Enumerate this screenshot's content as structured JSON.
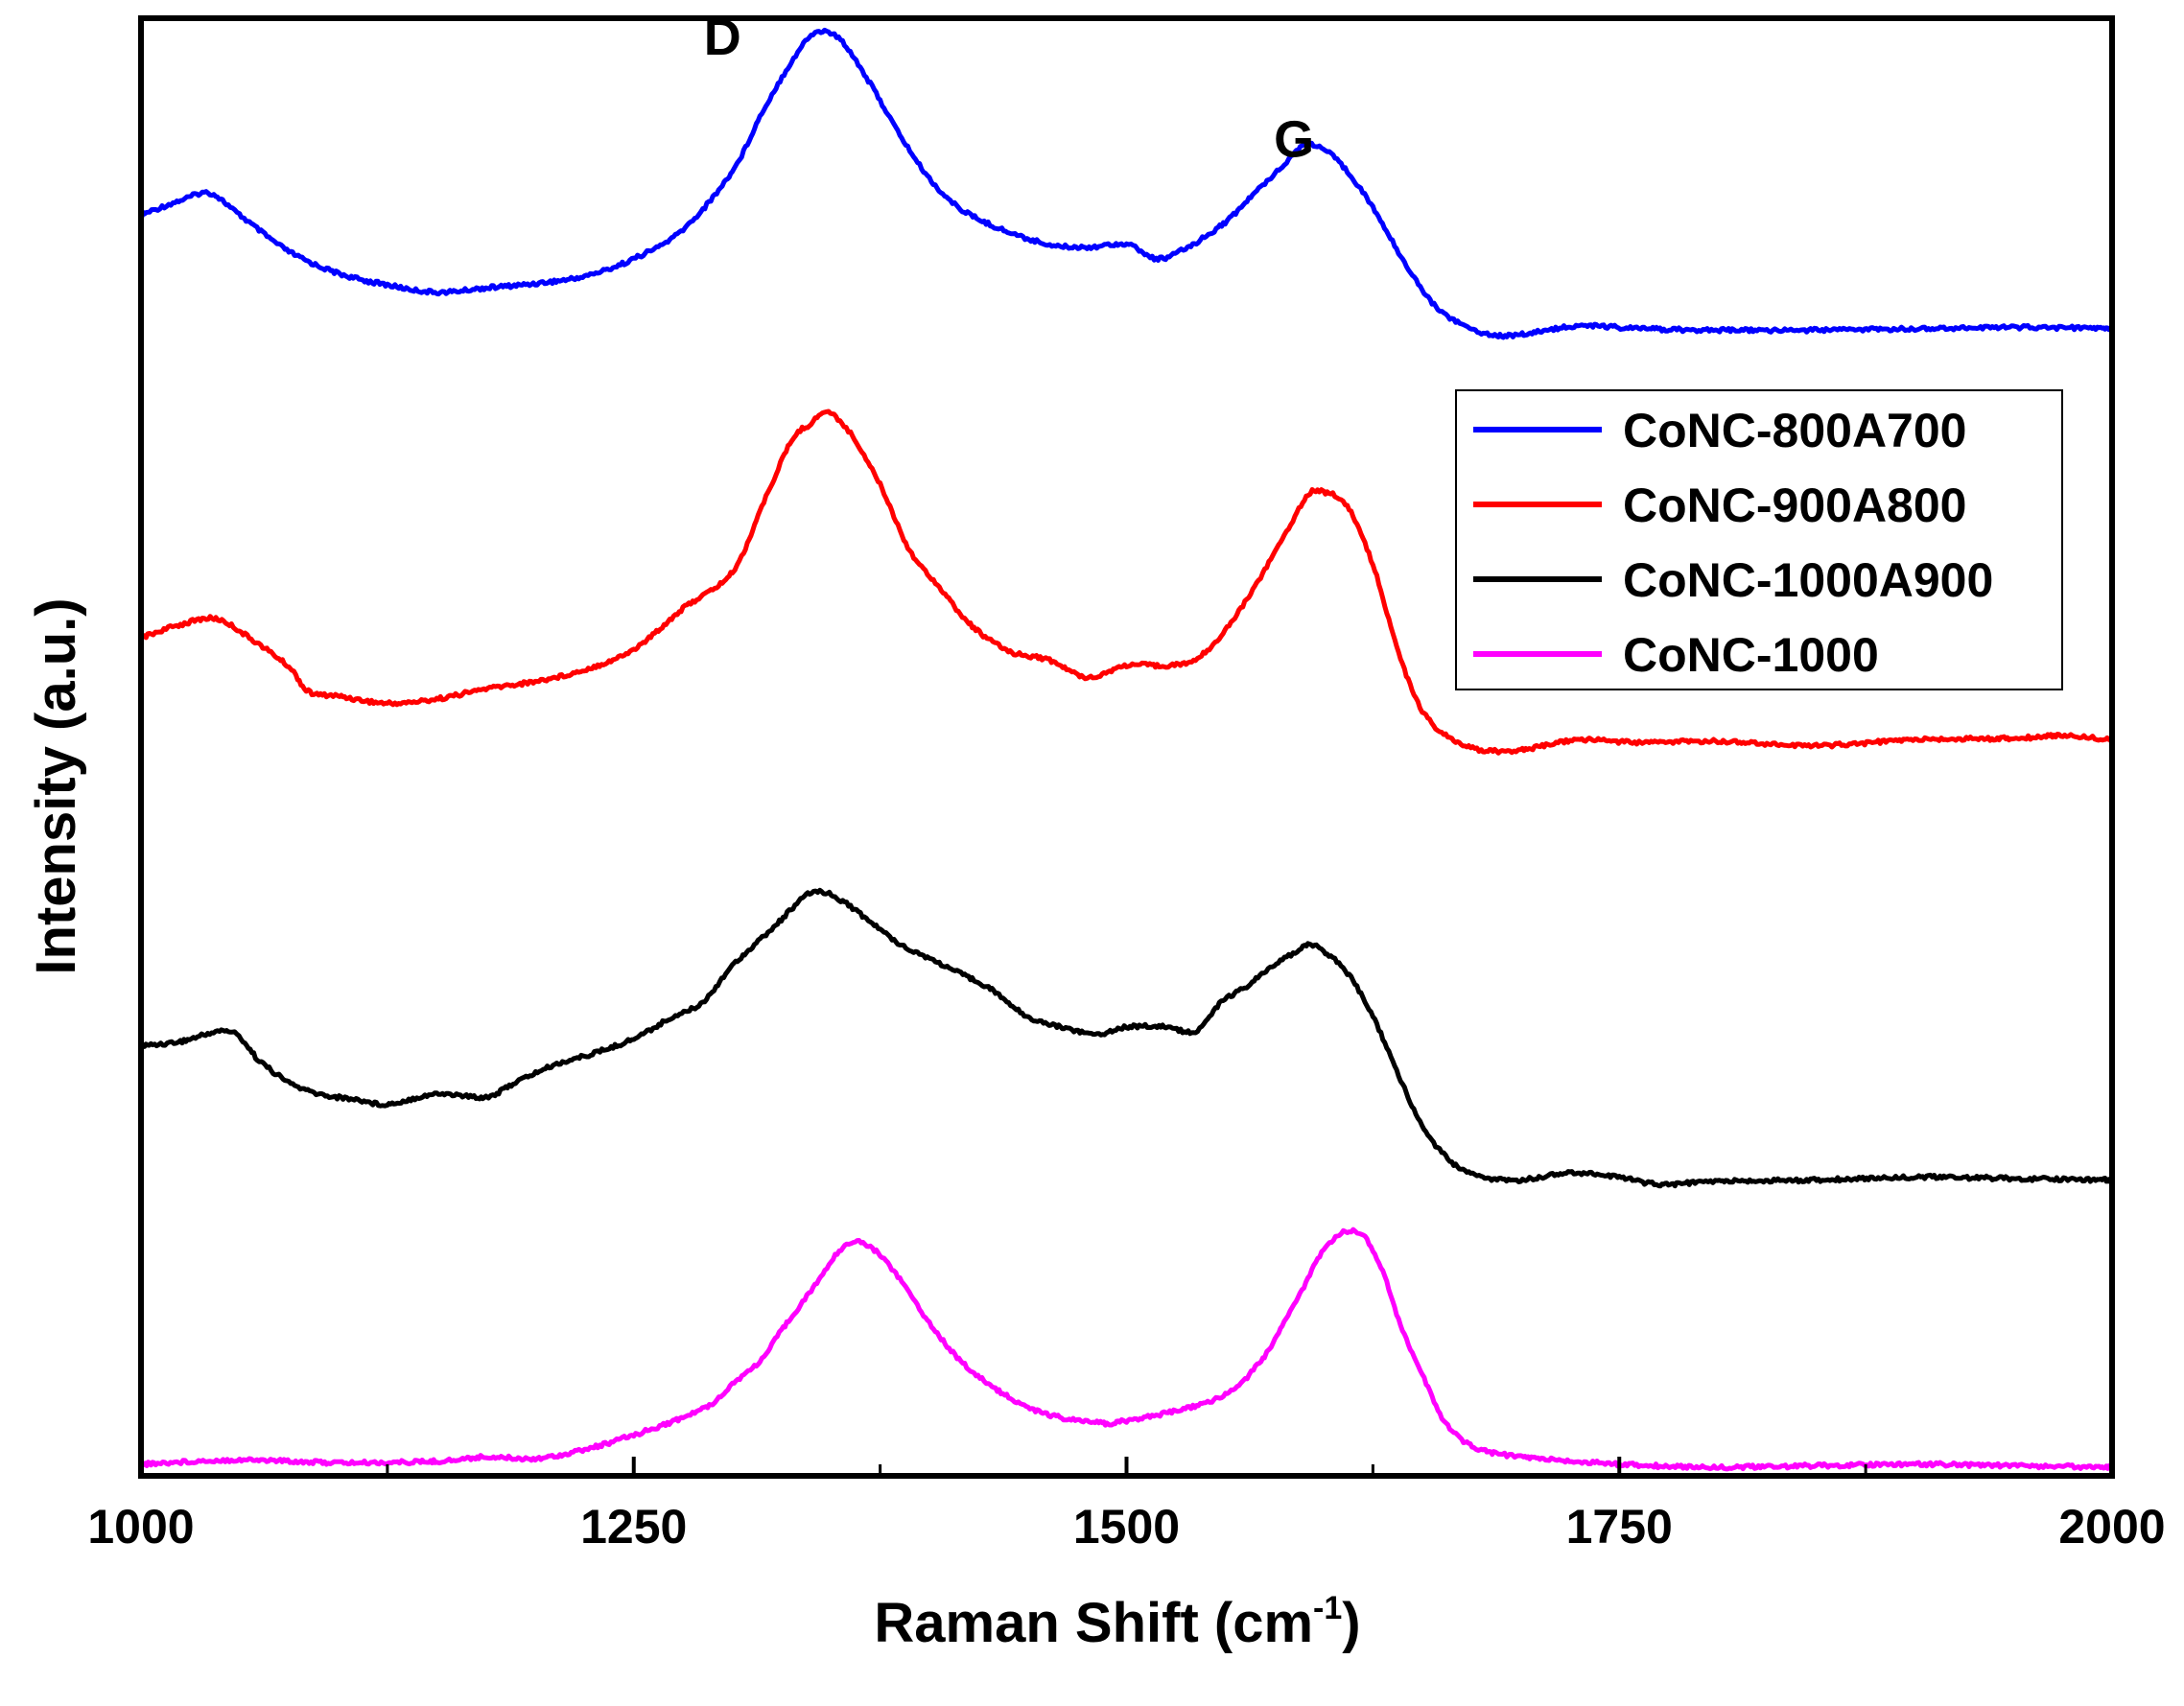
{
  "chart_data": {
    "type": "line",
    "title": "",
    "xlabel": "Raman Shift (cm",
    "xlabel_sup": "-1",
    "xlabel_close": ")",
    "ylabel": "Intensity (a.u.)",
    "xlim": [
      1000,
      2000
    ],
    "ylim": [
      0,
      100
    ],
    "xticks": [
      1000,
      1250,
      1500,
      1750,
      2000
    ],
    "x_tick_labels": [
      "1000",
      "1250",
      "1500",
      "1750",
      "2000"
    ],
    "grid": false,
    "legend_position": "right",
    "annotations": [
      {
        "text": "D",
        "x": 1295,
        "y": 97.5
      },
      {
        "text": "G",
        "x": 1585,
        "y": 90.5
      }
    ],
    "series": [
      {
        "name": "CoNC-800A700",
        "color": "#0000ff",
        "points": [
          [
            1000,
            86.5
          ],
          [
            1020,
            87.5
          ],
          [
            1035,
            88.0
          ],
          [
            1050,
            86.5
          ],
          [
            1075,
            84.0
          ],
          [
            1100,
            82.5
          ],
          [
            1125,
            81.7
          ],
          [
            1150,
            81.2
          ],
          [
            1175,
            81.5
          ],
          [
            1200,
            81.8
          ],
          [
            1225,
            82.3
          ],
          [
            1250,
            83.5
          ],
          [
            1275,
            85.5
          ],
          [
            1300,
            89.5
          ],
          [
            1315,
            93.5
          ],
          [
            1330,
            97.0
          ],
          [
            1342,
            99.0
          ],
          [
            1355,
            98.5
          ],
          [
            1370,
            95.5
          ],
          [
            1385,
            92.0
          ],
          [
            1400,
            89.0
          ],
          [
            1415,
            87.0
          ],
          [
            1435,
            85.6
          ],
          [
            1460,
            84.5
          ],
          [
            1480,
            84.3
          ],
          [
            1500,
            84.5
          ],
          [
            1515,
            83.5
          ],
          [
            1530,
            84.2
          ],
          [
            1550,
            86.0
          ],
          [
            1565,
            88.0
          ],
          [
            1580,
            90.0
          ],
          [
            1590,
            91.3
          ],
          [
            1600,
            91.0
          ],
          [
            1612,
            89.5
          ],
          [
            1625,
            87.0
          ],
          [
            1640,
            83.5
          ],
          [
            1655,
            80.5
          ],
          [
            1670,
            79.0
          ],
          [
            1685,
            78.3
          ],
          [
            1700,
            78.3
          ],
          [
            1730,
            78.9
          ],
          [
            1760,
            78.7
          ],
          [
            1800,
            78.6
          ],
          [
            1850,
            78.6
          ],
          [
            1900,
            78.7
          ],
          [
            1950,
            78.8
          ],
          [
            2000,
            78.7
          ]
        ]
      },
      {
        "name": "CoNC-900A800",
        "color": "#ff0000",
        "points": [
          [
            1000,
            57.5
          ],
          [
            1020,
            58.4
          ],
          [
            1038,
            58.8
          ],
          [
            1055,
            57.5
          ],
          [
            1075,
            55.5
          ],
          [
            1085,
            53.8
          ],
          [
            1100,
            53.5
          ],
          [
            1125,
            53.0
          ],
          [
            1150,
            53.3
          ],
          [
            1175,
            54.0
          ],
          [
            1200,
            54.5
          ],
          [
            1225,
            55.3
          ],
          [
            1250,
            56.7
          ],
          [
            1275,
            59.5
          ],
          [
            1300,
            62.0
          ],
          [
            1315,
            66.5
          ],
          [
            1330,
            71.0
          ],
          [
            1340,
            72.2
          ],
          [
            1348,
            73.0
          ],
          [
            1360,
            71.5
          ],
          [
            1375,
            68.0
          ],
          [
            1390,
            63.5
          ],
          [
            1405,
            61.0
          ],
          [
            1420,
            58.5
          ],
          [
            1440,
            56.6
          ],
          [
            1460,
            56.0
          ],
          [
            1480,
            54.8
          ],
          [
            1500,
            55.6
          ],
          [
            1520,
            55.6
          ],
          [
            1535,
            56.0
          ],
          [
            1550,
            58.0
          ],
          [
            1565,
            61.0
          ],
          [
            1580,
            64.5
          ],
          [
            1592,
            67.3
          ],
          [
            1600,
            67.5
          ],
          [
            1612,
            66.5
          ],
          [
            1625,
            62.5
          ],
          [
            1638,
            56.5
          ],
          [
            1650,
            52.5
          ],
          [
            1665,
            50.5
          ],
          [
            1680,
            49.8
          ],
          [
            1700,
            49.8
          ],
          [
            1730,
            50.5
          ],
          [
            1760,
            50.3
          ],
          [
            1800,
            50.4
          ],
          [
            1850,
            50.1
          ],
          [
            1900,
            50.5
          ],
          [
            1950,
            50.6
          ],
          [
            1975,
            50.8
          ],
          [
            2000,
            50.5
          ]
        ]
      },
      {
        "name": "CoNC-1000A900",
        "color": "#000000",
        "points": [
          [
            1000,
            29.5
          ],
          [
            1020,
            29.8
          ],
          [
            1045,
            30.5
          ],
          [
            1060,
            28.5
          ],
          [
            1075,
            27.0
          ],
          [
            1090,
            26.2
          ],
          [
            1110,
            25.8
          ],
          [
            1125,
            25.5
          ],
          [
            1150,
            26.2
          ],
          [
            1175,
            26.0
          ],
          [
            1190,
            27.0
          ],
          [
            1210,
            28.2
          ],
          [
            1230,
            29.0
          ],
          [
            1250,
            30.0
          ],
          [
            1270,
            31.5
          ],
          [
            1285,
            32.5
          ],
          [
            1300,
            35.0
          ],
          [
            1320,
            37.5
          ],
          [
            1340,
            40.0
          ],
          [
            1355,
            39.5
          ],
          [
            1370,
            38.0
          ],
          [
            1385,
            36.5
          ],
          [
            1400,
            35.5
          ],
          [
            1415,
            34.5
          ],
          [
            1430,
            33.5
          ],
          [
            1450,
            31.5
          ],
          [
            1470,
            30.7
          ],
          [
            1485,
            30.3
          ],
          [
            1500,
            30.8
          ],
          [
            1520,
            30.8
          ],
          [
            1535,
            30.5
          ],
          [
            1548,
            32.5
          ],
          [
            1560,
            33.5
          ],
          [
            1575,
            35.0
          ],
          [
            1592,
            36.4
          ],
          [
            1600,
            36.0
          ],
          [
            1612,
            34.5
          ],
          [
            1625,
            31.5
          ],
          [
            1638,
            27.5
          ],
          [
            1650,
            24.0
          ],
          [
            1665,
            21.5
          ],
          [
            1680,
            20.5
          ],
          [
            1700,
            20.3
          ],
          [
            1725,
            20.8
          ],
          [
            1750,
            20.5
          ],
          [
            1770,
            20.0
          ],
          [
            1800,
            20.2
          ],
          [
            1850,
            20.3
          ],
          [
            1900,
            20.5
          ],
          [
            1950,
            20.4
          ],
          [
            2000,
            20.3
          ]
        ]
      },
      {
        "name": "CoNC-1000",
        "color": "#ff00ff",
        "points": [
          [
            1000,
            0.8
          ],
          [
            1050,
            1.1
          ],
          [
            1100,
            0.9
          ],
          [
            1150,
            1.0
          ],
          [
            1175,
            1.3
          ],
          [
            1200,
            1.2
          ],
          [
            1225,
            1.8
          ],
          [
            1250,
            2.8
          ],
          [
            1275,
            4.0
          ],
          [
            1290,
            5.0
          ],
          [
            1300,
            6.3
          ],
          [
            1315,
            8.0
          ],
          [
            1325,
            10.0
          ],
          [
            1340,
            12.7
          ],
          [
            1358,
            15.9
          ],
          [
            1372,
            15.5
          ],
          [
            1385,
            13.5
          ],
          [
            1400,
            10.5
          ],
          [
            1415,
            8.0
          ],
          [
            1430,
            6.3
          ],
          [
            1450,
            4.7
          ],
          [
            1470,
            3.9
          ],
          [
            1490,
            3.6
          ],
          [
            1500,
            3.8
          ],
          [
            1520,
            4.3
          ],
          [
            1540,
            5.0
          ],
          [
            1555,
            6.0
          ],
          [
            1570,
            8.2
          ],
          [
            1580,
            10.5
          ],
          [
            1590,
            13.0
          ],
          [
            1600,
            15.5
          ],
          [
            1610,
            16.7
          ],
          [
            1620,
            16.5
          ],
          [
            1630,
            14.0
          ],
          [
            1640,
            10.0
          ],
          [
            1650,
            7.0
          ],
          [
            1660,
            4.0
          ],
          [
            1670,
            2.5
          ],
          [
            1680,
            1.8
          ],
          [
            1700,
            1.3
          ],
          [
            1750,
            0.8
          ],
          [
            1800,
            0.6
          ],
          [
            1850,
            0.7
          ],
          [
            1900,
            0.8
          ],
          [
            1950,
            0.7
          ],
          [
            2000,
            0.6
          ]
        ]
      }
    ]
  }
}
